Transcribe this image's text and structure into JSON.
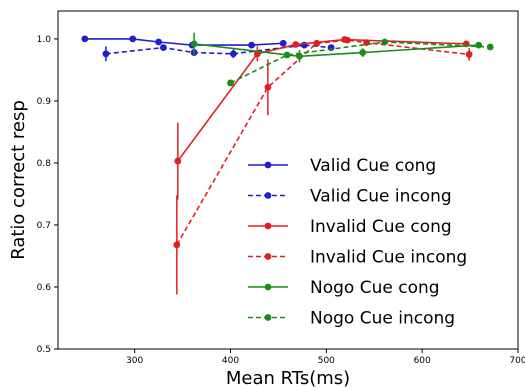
{
  "chart_data": {
    "type": "line",
    "title": "",
    "xlabel": "Mean RTs(ms)",
    "ylabel": "Ratio correct resp",
    "xlim": [
      220,
      700
    ],
    "ylim": [
      0.5,
      1.045
    ],
    "xticks": [
      300,
      400,
      500,
      600,
      700
    ],
    "yticks": [
      0.5,
      0.6,
      0.7,
      0.8,
      0.9,
      1.0
    ],
    "grid": false,
    "legend_position": "bottom-right",
    "series": [
      {
        "name": "Valid Cue cong",
        "color": "#1f1fcc",
        "linestyle": "solid",
        "points": [
          {
            "x": 248,
            "y": 1.0,
            "err": 0
          },
          {
            "x": 298,
            "y": 1.0,
            "err": 0
          },
          {
            "x": 325,
            "y": 0.995,
            "err": 0.004
          },
          {
            "x": 360,
            "y": 0.99,
            "err": 0
          },
          {
            "x": 422,
            "y": 0.99,
            "err": 0
          },
          {
            "x": 455,
            "y": 0.993,
            "err": 0
          }
        ]
      },
      {
        "name": "Valid Cue incong",
        "color": "#1f1fcc",
        "linestyle": "dashed",
        "points": [
          {
            "x": 270,
            "y": 0.976,
            "err": 0.012
          },
          {
            "x": 330,
            "y": 0.986,
            "err": 0.005
          },
          {
            "x": 362,
            "y": 0.978,
            "err": 0.004
          },
          {
            "x": 403,
            "y": 0.976,
            "err": 0.007
          },
          {
            "x": 477,
            "y": 0.99,
            "err": 0
          },
          {
            "x": 505,
            "y": 0.986,
            "err": 0
          }
        ]
      },
      {
        "name": "Invalid Cue cong",
        "color": "#e02020",
        "linestyle": "solid",
        "points": [
          {
            "x": 345,
            "y": 0.803,
            "err": 0.062
          },
          {
            "x": 428,
            "y": 0.976,
            "err": 0.012
          },
          {
            "x": 468,
            "y": 0.991,
            "err": 0
          },
          {
            "x": 519,
            "y": 0.999,
            "err": 0.004
          },
          {
            "x": 646,
            "y": 0.992,
            "err": 0
          }
        ]
      },
      {
        "name": "Invalid Cue incong",
        "color": "#e02020",
        "linestyle": "dashed",
        "points": [
          {
            "x": 344,
            "y": 0.668,
            "err": 0.08
          },
          {
            "x": 439,
            "y": 0.922,
            "err": 0.045
          },
          {
            "x": 490,
            "y": 0.993,
            "err": 0
          },
          {
            "x": 522,
            "y": 0.998,
            "err": 0
          },
          {
            "x": 542,
            "y": 0.994,
            "err": 0
          },
          {
            "x": 649,
            "y": 0.975,
            "err": 0.01
          }
        ]
      },
      {
        "name": "Nogo Cue cong",
        "color": "#1a8c1a",
        "linestyle": "solid",
        "points": [
          {
            "x": 362,
            "y": 0.992,
            "err": 0.018
          },
          {
            "x": 472,
            "y": 0.972,
            "err": 0.01
          },
          {
            "x": 538,
            "y": 0.978,
            "err": 0.007
          },
          {
            "x": 659,
            "y": 0.99,
            "err": 0
          }
        ]
      },
      {
        "name": "Nogo Cue incong",
        "color": "#1a8c1a",
        "linestyle": "dashed",
        "points": [
          {
            "x": 400,
            "y": 0.929,
            "err": 0
          },
          {
            "x": 459,
            "y": 0.974,
            "err": 0
          },
          {
            "x": 561,
            "y": 0.995,
            "err": 0
          },
          {
            "x": 671,
            "y": 0.987,
            "err": 0
          }
        ]
      }
    ]
  }
}
